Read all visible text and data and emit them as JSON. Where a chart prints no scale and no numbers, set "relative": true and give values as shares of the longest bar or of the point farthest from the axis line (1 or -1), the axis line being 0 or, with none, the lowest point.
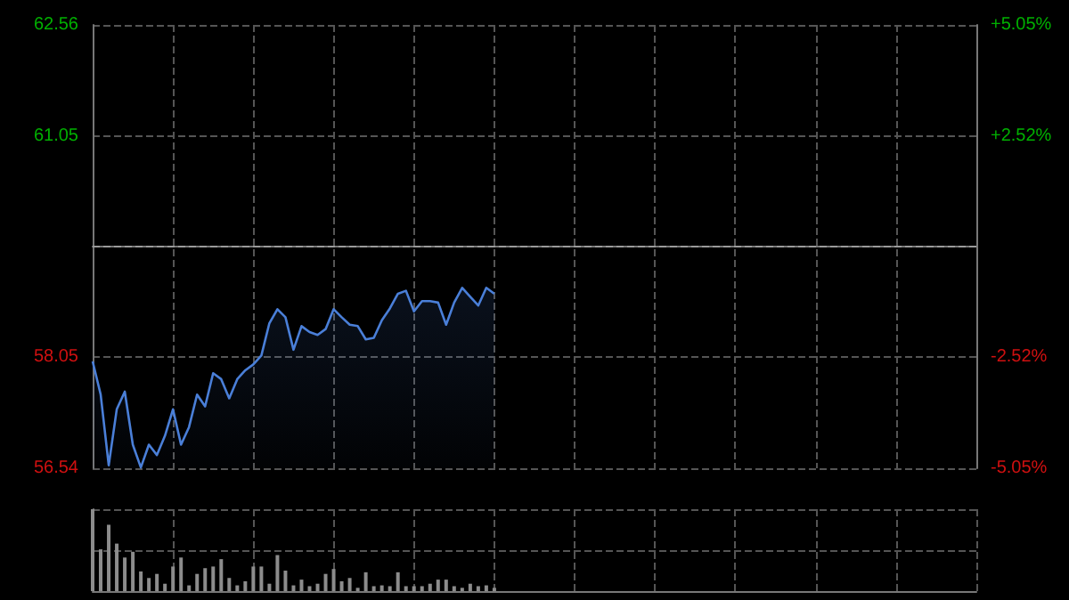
{
  "chart_data": [
    {
      "type": "area",
      "categories": [
        null,
        null,
        null,
        null,
        null,
        null,
        null,
        null,
        null,
        null,
        null,
        null,
        null,
        null,
        null,
        null,
        null,
        null,
        null,
        null,
        null,
        null,
        null,
        null,
        null,
        null,
        null,
        null,
        null,
        null,
        null,
        null,
        null,
        null,
        null,
        null,
        null,
        null,
        null,
        null,
        null,
        null,
        null,
        null,
        null,
        null,
        null,
        null,
        null,
        null,
        null,
        null,
        null,
        null,
        null,
        null,
        null,
        null,
        null,
        null,
        null,
        null,
        null,
        null,
        null,
        null,
        null,
        null,
        null,
        null,
        null,
        null,
        null,
        null,
        null,
        null,
        null,
        null,
        null,
        null,
        null,
        null,
        null,
        null,
        null,
        null,
        null,
        null,
        null,
        null,
        null,
        null,
        null,
        null,
        null,
        null,
        null,
        null,
        null,
        null,
        null,
        null,
        null,
        null,
        null,
        null,
        null,
        null,
        null,
        null,
        null
      ],
      "ylim": [
        56.54,
        62.56
      ],
      "yticks": [
        56.54,
        58.05,
        61.05,
        62.56
      ],
      "y2lim": [
        -5.05,
        5.05
      ],
      "y2ticks": [
        {
          "value": -5.05,
          "label": "-5.05%"
        },
        {
          "value": -2.52,
          "label": "-2.52%"
        },
        {
          "value": 2.52,
          "label": "+2.52%"
        },
        {
          "value": 5.05,
          "label": "+5.05%"
        }
      ],
      "tick_labels": "y",
      "grid": true,
      "line_style": "solid",
      "ref_lines": [
        {
          "axis": "y",
          "value": 59.55,
          "color": "#9a9a9a",
          "line_style": "dashed"
        }
      ],
      "series": [
        {
          "color": "#4a7fd8",
          "values": [
            57.99,
            57.54,
            56.58,
            57.34,
            57.58,
            56.86,
            56.55,
            56.86,
            56.72,
            56.98,
            57.34,
            56.86,
            57.1,
            57.54,
            57.38,
            57.83,
            57.75,
            57.49,
            57.75,
            57.87,
            57.95,
            58.07,
            58.51,
            58.7,
            58.59,
            58.15,
            58.47,
            58.39,
            58.35,
            58.43,
            58.7,
            58.59,
            58.49,
            58.47,
            58.29,
            58.31,
            58.55,
            58.71,
            58.91,
            58.95,
            58.67,
            58.81,
            58.81,
            58.79,
            58.49,
            58.79,
            58.99,
            58.87,
            58.75,
            58.99,
            58.91,
            null,
            null,
            null,
            null,
            null,
            null,
            null,
            null,
            null,
            null,
            null,
            null,
            null,
            null,
            null,
            null,
            null,
            null,
            null,
            null,
            null,
            null,
            null,
            null,
            null,
            null,
            null,
            null,
            null,
            null,
            null,
            null,
            null,
            null,
            null,
            null,
            null,
            null,
            null,
            null,
            null,
            null,
            null,
            null,
            null,
            null,
            null,
            null,
            null,
            null,
            null,
            null,
            null,
            null,
            null,
            null,
            null,
            null,
            null,
            null
          ]
        }
      ]
    },
    {
      "type": "bar",
      "relative": true,
      "tick_labels": false,
      "grid": true,
      "categories": [
        null,
        null,
        null,
        null,
        null,
        null,
        null,
        null,
        null,
        null,
        null,
        null,
        null,
        null,
        null,
        null,
        null,
        null,
        null,
        null,
        null,
        null,
        null,
        null,
        null,
        null,
        null,
        null,
        null,
        null,
        null,
        null,
        null,
        null,
        null,
        null,
        null,
        null,
        null,
        null,
        null,
        null,
        null,
        null,
        null,
        null,
        null,
        null,
        null,
        null,
        null,
        null,
        null,
        null,
        null,
        null,
        null,
        null,
        null,
        null,
        null,
        null,
        null,
        null,
        null,
        null,
        null,
        null,
        null,
        null,
        null,
        null,
        null,
        null,
        null,
        null,
        null,
        null,
        null,
        null,
        null,
        null,
        null,
        null,
        null,
        null,
        null,
        null,
        null,
        null,
        null,
        null,
        null,
        null,
        null,
        null,
        null,
        null,
        null,
        null,
        null,
        null,
        null,
        null,
        null,
        null,
        null,
        null,
        null,
        null,
        null
      ],
      "series": [
        {
          "color": "#8c8c8c",
          "values": [
            1,
            0.51,
            0.81,
            0.58,
            0.41,
            0.48,
            0.24,
            0.16,
            0.21,
            0.09,
            0.3,
            0.41,
            0.07,
            0.21,
            0.28,
            0.3,
            0.39,
            0.16,
            0.07,
            0.12,
            0.3,
            0.3,
            0.09,
            0.44,
            0.25,
            0.07,
            0.14,
            0.06,
            0.09,
            0.21,
            0.27,
            0.12,
            0.16,
            0.04,
            0.23,
            0.06,
            0.07,
            0.06,
            0.23,
            0.06,
            0.06,
            0.06,
            0.09,
            0.14,
            0.14,
            0.06,
            0.04,
            0.09,
            0.06,
            0.07,
            0.04,
            null,
            null,
            null,
            null,
            null,
            null,
            null,
            null,
            null,
            null,
            null,
            null,
            null,
            null,
            null,
            null,
            null,
            null,
            null,
            null,
            null,
            null,
            null,
            null,
            null,
            null,
            null,
            null,
            null,
            null,
            null,
            null,
            null,
            null,
            null,
            null,
            null,
            null,
            null,
            null,
            null,
            null,
            null,
            null,
            null,
            null,
            null,
            null,
            null,
            null,
            null,
            null,
            null,
            null,
            null,
            null,
            null,
            null,
            null,
            null
          ]
        }
      ]
    }
  ]
}
